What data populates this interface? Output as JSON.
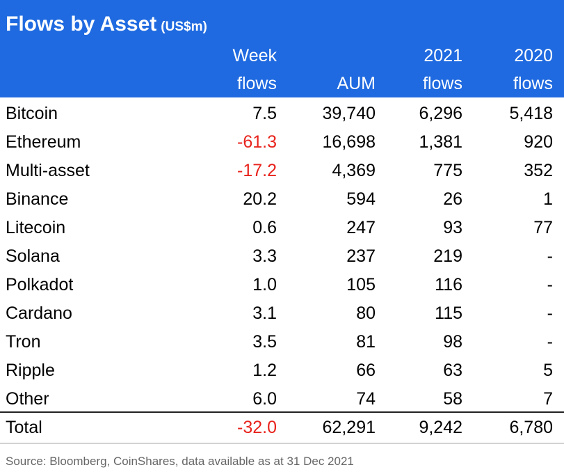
{
  "header": {
    "title": "Flows by Asset",
    "unit": "(US$m)",
    "columns": [
      [
        "Week",
        "flows"
      ],
      [
        "AUM"
      ],
      [
        "2021",
        "flows"
      ],
      [
        "2020",
        "flows"
      ]
    ]
  },
  "table": {
    "rows": [
      [
        "Bitcoin",
        "7.5",
        "39,740",
        "6,296",
        "5,418"
      ],
      [
        "Ethereum",
        "-61.3",
        "16,698",
        "1,381",
        "920"
      ],
      [
        "Multi-asset",
        "-17.2",
        "4,369",
        "775",
        "352"
      ],
      [
        "Binance",
        "20.2",
        "594",
        "26",
        "1"
      ],
      [
        "Litecoin",
        "0.6",
        "247",
        "93",
        "77"
      ],
      [
        "Solana",
        "3.3",
        "237",
        "219",
        "-"
      ],
      [
        "Polkadot",
        "1.0",
        "105",
        "116",
        "-"
      ],
      [
        "Cardano",
        "3.1",
        "80",
        "115",
        "-"
      ],
      [
        "Tron",
        "3.5",
        "81",
        "98",
        "-"
      ],
      [
        "Ripple",
        "1.2",
        "66",
        "63",
        "5"
      ],
      [
        "Other",
        "6.0",
        "74",
        "58",
        "7"
      ]
    ],
    "total": [
      "Total",
      "-32.0",
      "62,291",
      "9,242",
      "6,780"
    ]
  },
  "negative_color": "#e8231c",
  "source": "Source: Bloomberg, CoinShares, data available as at 31 Dec 2021"
}
